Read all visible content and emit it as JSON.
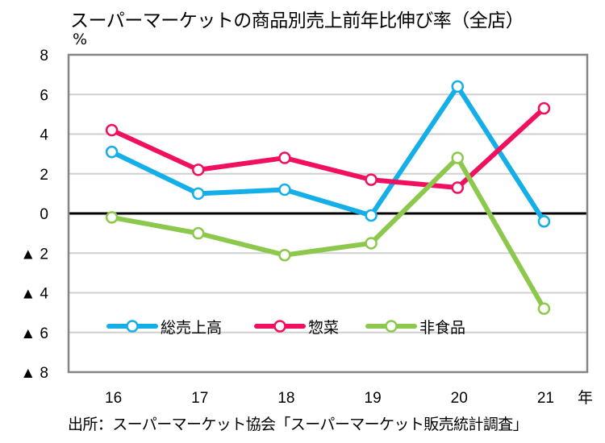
{
  "chart_data": {
    "type": "line",
    "title": "スーパーマーケットの商品別売上前年比伸び率（全店）",
    "ylabel": "%",
    "xlabel": "年",
    "x": [
      "16",
      "17",
      "18",
      "19",
      "20",
      "21"
    ],
    "ylim": [
      -8,
      8
    ],
    "yticks": [
      8,
      6,
      4,
      2,
      0,
      -2,
      -4,
      -6,
      -8
    ],
    "ytick_labels": [
      "8",
      "6",
      "4",
      "2",
      "0",
      "▲ 2",
      "▲ 4",
      "▲ 6",
      "▲ 8"
    ],
    "grid": true,
    "zero_line": true,
    "legend_position": "bottom-inside",
    "series": [
      {
        "name": "総売上高",
        "color": "#14aee8",
        "values": [
          3.1,
          1.0,
          1.2,
          -0.1,
          6.4,
          -0.4
        ]
      },
      {
        "name": "惣菜",
        "color": "#f0105f",
        "values": [
          4.2,
          2.2,
          2.8,
          1.7,
          1.3,
          5.3
        ]
      },
      {
        "name": "非食品",
        "color": "#8cc84b",
        "values": [
          -0.2,
          -1.0,
          -2.1,
          -1.5,
          2.8,
          -4.8
        ]
      }
    ],
    "source": "出所：スーパーマーケット協会「スーパーマーケット販売統計調査」"
  }
}
